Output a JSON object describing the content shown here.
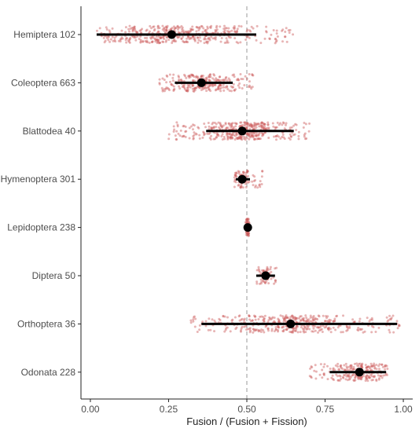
{
  "chart_data": {
    "type": "scatter",
    "xlabel": "Fusion / (Fusion + Fission)",
    "xlim": [
      -0.03,
      1.03
    ],
    "x_ticks": [
      0.0,
      0.25,
      0.5,
      0.75,
      1.0
    ],
    "x_tick_labels": [
      "0.00",
      "0.25",
      "0.50",
      "0.75",
      "1.00"
    ],
    "reference_line_x": 0.5,
    "grid": false,
    "colors": {
      "points": "#cd5c5c",
      "summary": "#000000",
      "refline": "#aaaaaa"
    },
    "categories": [
      "Hemiptera 102",
      "Coleoptera 663",
      "Blattodea 40",
      "Hymenoptera 301",
      "Lepidoptera 238",
      "Diptera 50",
      "Orthoptera 36",
      "Odonata 228"
    ],
    "series": [
      {
        "category": "Hemiptera 102",
        "mean": 0.26,
        "ci": [
          0.02,
          0.53
        ],
        "spread": [
          0.02,
          0.65
        ]
      },
      {
        "category": "Coleoptera 663",
        "mean": 0.355,
        "ci": [
          0.27,
          0.455
        ],
        "spread": [
          0.22,
          0.52
        ]
      },
      {
        "category": "Blattodea 40",
        "mean": 0.485,
        "ci": [
          0.37,
          0.65
        ],
        "spread": [
          0.25,
          0.7
        ]
      },
      {
        "category": "Hymenoptera 301",
        "mean": 0.485,
        "ci": [
          0.465,
          0.51
        ],
        "spread": [
          0.46,
          0.55
        ]
      },
      {
        "category": "Lepidoptera 238",
        "mean": 0.503,
        "ci": [
          0.498,
          0.508
        ],
        "spread": [
          0.495,
          0.51
        ]
      },
      {
        "category": "Diptera 50",
        "mean": 0.56,
        "ci": [
          0.53,
          0.59
        ],
        "spread": [
          0.53,
          0.595
        ]
      },
      {
        "category": "Orthoptera 36",
        "mean": 0.64,
        "ci": [
          0.355,
          0.98
        ],
        "spread": [
          0.32,
          0.99
        ]
      },
      {
        "category": "Odonata 228",
        "mean": 0.86,
        "ci": [
          0.765,
          0.945
        ],
        "spread": [
          0.7,
          0.95
        ]
      }
    ]
  }
}
